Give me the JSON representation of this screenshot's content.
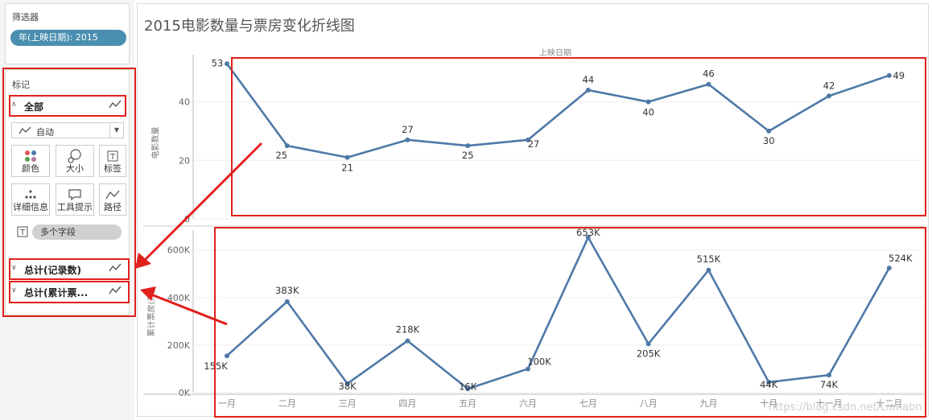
{
  "filters": {
    "title": "筛选器",
    "pill": "年(上映日期): 2015"
  },
  "marks": {
    "title": "标记",
    "cards": [
      {
        "label": "全部",
        "expanded": true
      },
      {
        "label": "总计(记录数)",
        "expanded": false
      },
      {
        "label": "总计(累计票...",
        "expanded": false
      }
    ],
    "mark_type": "自动",
    "buttons": {
      "color": "颜色",
      "size": "大小",
      "label": "标签",
      "detail": "详细信息",
      "tooltip": "工具提示",
      "path": "路径"
    },
    "label_pill": "多个字段"
  },
  "chart": {
    "title": "2015电影数量与票房变化折线图",
    "top_axis_title": "上映日期",
    "top_ylabel": "电影数量",
    "bottom_ylabel": "累计票房(万)",
    "watermark": "https://blog.csdn.net/Lianabn"
  },
  "chart_data": [
    {
      "type": "line",
      "categories": [
        "一月",
        "二月",
        "三月",
        "四月",
        "五月",
        "六月",
        "七月",
        "八月",
        "九月",
        "十月",
        "十一月",
        "十二月"
      ],
      "values": [
        53,
        25,
        21,
        27,
        25,
        27,
        44,
        40,
        46,
        30,
        42,
        49
      ],
      "data_labels": [
        "53",
        "25",
        "21",
        "27",
        "25",
        "27",
        "44",
        "40",
        "46",
        "30",
        "42",
        "49"
      ],
      "yticks": [
        "0",
        "20",
        "40"
      ],
      "ylim": [
        0,
        55
      ],
      "color": "#4e79a7"
    },
    {
      "type": "line",
      "categories": [
        "一月",
        "二月",
        "三月",
        "四月",
        "五月",
        "六月",
        "七月",
        "八月",
        "九月",
        "十月",
        "十一月",
        "十二月"
      ],
      "values": [
        155,
        383,
        38,
        218,
        16,
        100,
        653,
        205,
        515,
        44,
        74,
        524
      ],
      "data_labels": [
        "155K",
        "383K",
        "38K",
        "218K",
        "16K",
        "100K",
        "653K",
        "205K",
        "515K",
        "44K",
        "74K",
        "524K"
      ],
      "yticks": [
        "0K",
        "200K",
        "400K",
        "600K"
      ],
      "ylim": [
        0,
        670
      ],
      "color": "#4e79a7"
    }
  ]
}
